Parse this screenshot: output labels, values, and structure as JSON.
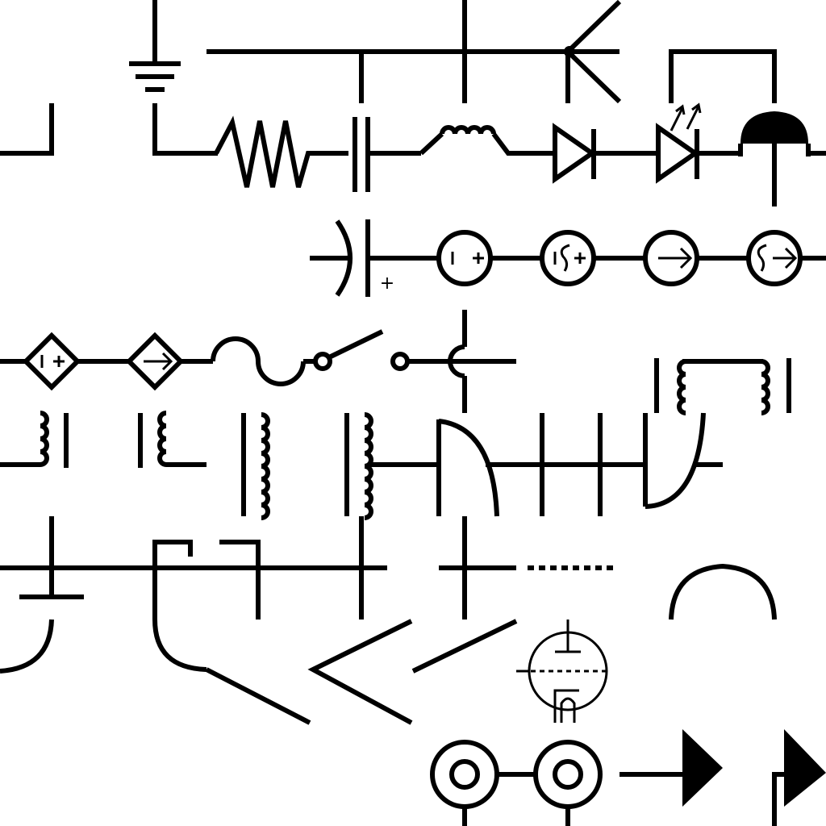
{
  "diagram": {
    "kind": "circuit-symbol-tile-sheet",
    "stroke_color": "#000000",
    "background_color": "#ffffff",
    "symbols": [
      {
        "id": "ground",
        "icon": "ground-icon"
      },
      {
        "id": "wire-junction",
        "icon": "wire-junction-icon"
      },
      {
        "id": "resistor",
        "icon": "resistor-icon"
      },
      {
        "id": "capacitor",
        "icon": "capacitor-icon"
      },
      {
        "id": "polarized-capacitor",
        "icon": "polarized-capacitor-icon",
        "plus_label": "+"
      },
      {
        "id": "inductor",
        "icon": "inductor-icon"
      },
      {
        "id": "diode",
        "icon": "diode-icon"
      },
      {
        "id": "led",
        "icon": "led-icon"
      },
      {
        "id": "lamp",
        "icon": "lamp-icon"
      },
      {
        "id": "voltage-source",
        "icon": "voltage-source-icon"
      },
      {
        "id": "ac-voltage-source",
        "icon": "ac-voltage-source-icon"
      },
      {
        "id": "current-source",
        "icon": "current-source-icon"
      },
      {
        "id": "ac-current-source",
        "icon": "ac-current-source-icon"
      },
      {
        "id": "dependent-voltage-source",
        "icon": "dependent-voltage-source-icon"
      },
      {
        "id": "dependent-current-source",
        "icon": "dependent-current-source-icon"
      },
      {
        "id": "fuse",
        "icon": "fuse-icon"
      },
      {
        "id": "switch",
        "icon": "switch-icon"
      },
      {
        "id": "wire-crossover",
        "icon": "wire-crossover-icon"
      },
      {
        "id": "transformer",
        "icon": "transformer-icon"
      },
      {
        "id": "vacuum-tube",
        "icon": "vacuum-tube-icon"
      },
      {
        "id": "coax-connector",
        "icon": "coax-connector-icon"
      },
      {
        "id": "antenna-flag",
        "icon": "antenna-flag-icon"
      }
    ]
  }
}
